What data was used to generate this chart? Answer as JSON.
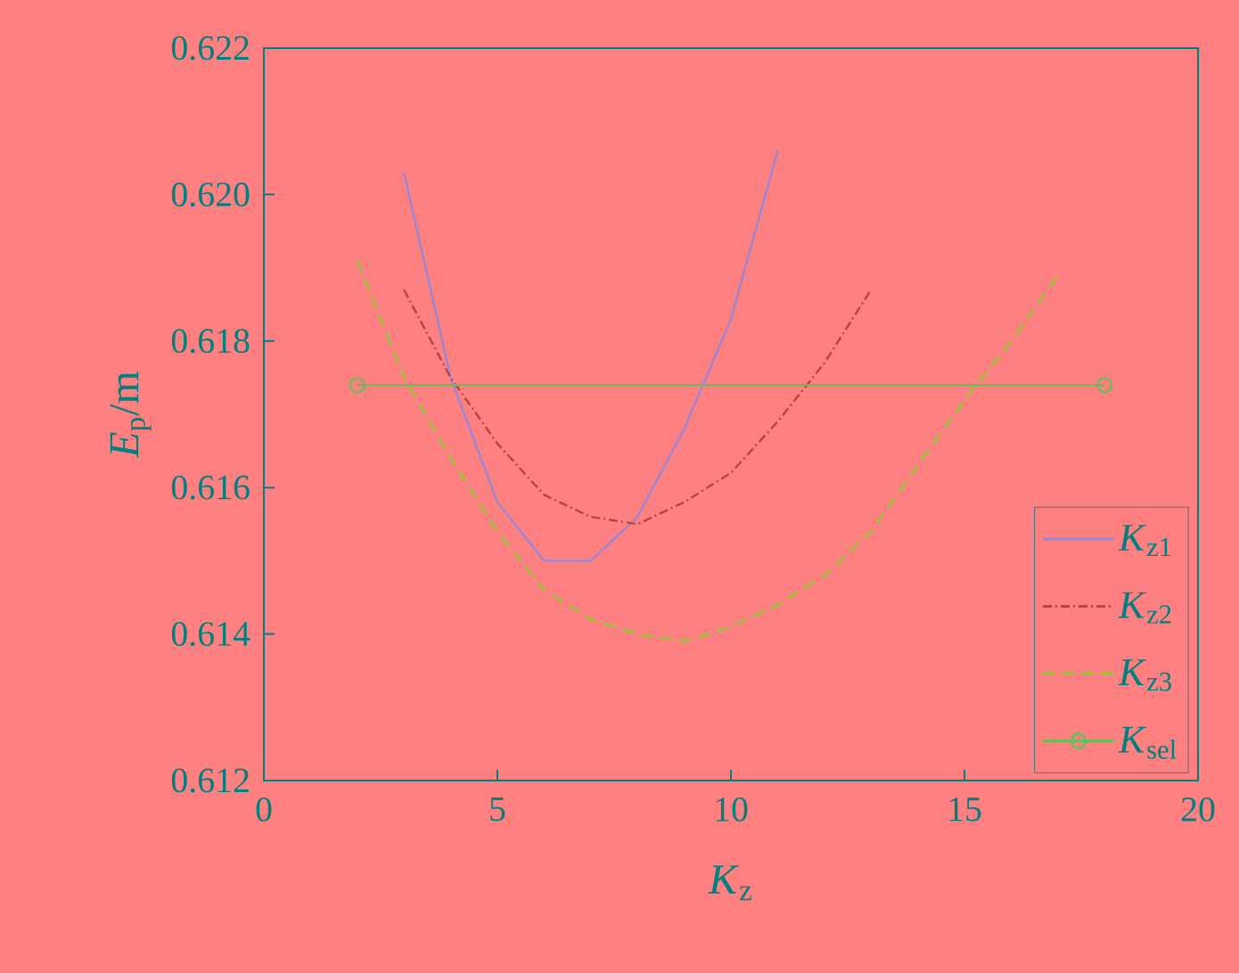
{
  "chart_data": {
    "type": "line",
    "xlabel": "*K*$_{z}$",
    "ylabel": "*E*$_{p}$/m",
    "xlim": [
      0,
      20
    ],
    "xticks": [
      0,
      5,
      10,
      15,
      20
    ],
    "ylim": [
      0.612,
      0.622
    ],
    "yticks": [
      0.612,
      0.614,
      0.616,
      0.618,
      {
        "value": 0.62,
        "label": "0.620"
      },
      0.622
    ],
    "grid": false,
    "legend": "bottom right",
    "series": [
      {
        "name": "*K*$_{z1}$",
        "color": "#9a86d6",
        "line_style": "solid",
        "marker": "none",
        "x": [
          3,
          4,
          5,
          6,
          7,
          8,
          9,
          10,
          11
        ],
        "values": [
          0.6203,
          0.6175,
          0.6158,
          0.615,
          0.615,
          0.6156,
          0.6168,
          0.6183,
          0.6206
        ]
      },
      {
        "name": "*K*$_{z2}$",
        "color": "#c0403a",
        "line_style": "dashdot",
        "marker": "none",
        "x": [
          3,
          4,
          5,
          6,
          7,
          8,
          9,
          10,
          11,
          12,
          13
        ],
        "values": [
          0.6187,
          0.6175,
          0.6166,
          0.6159,
          0.6156,
          0.6155,
          0.6158,
          0.6162,
          0.6169,
          0.6177,
          0.6187
        ]
      },
      {
        "name": "*K*$_{z3}$",
        "color": "#8ccc30",
        "line_style": "dashed",
        "marker": "none",
        "x": [
          2,
          3,
          4,
          5,
          6,
          7,
          8,
          9,
          10,
          11,
          12,
          13,
          14,
          15,
          16,
          17
        ],
        "values": [
          0.6191,
          0.6175,
          0.6164,
          0.6154,
          0.6146,
          0.6142,
          0.614,
          0.6139,
          0.6141,
          0.6144,
          0.6148,
          0.6154,
          0.6163,
          0.6172,
          0.618,
          0.6189
        ]
      },
      {
        "name": "*K*$_{sel}$",
        "color": "#6cbb5c",
        "line_style": "solid",
        "marker": "circle",
        "x": [
          2,
          18
        ],
        "values": [
          0.6174,
          0.6174
        ]
      }
    ]
  }
}
